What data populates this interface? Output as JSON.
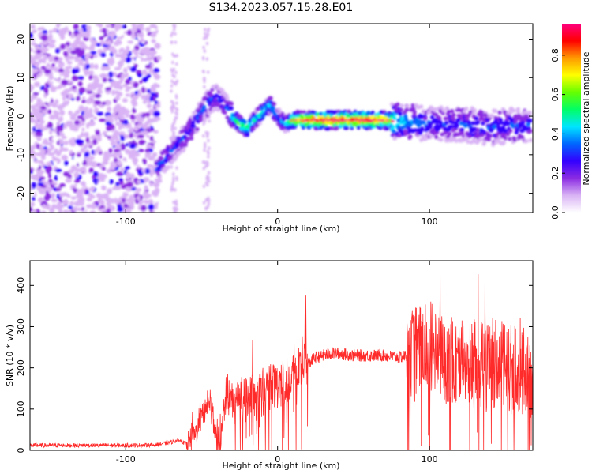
{
  "figure": {
    "title": "S134.2023.057.15.28.E01"
  },
  "chart_data": [
    {
      "type": "heatmap",
      "xlabel": "Height of straight line (km)",
      "ylabel": "Frequency (Hz)",
      "xlim": [
        -163,
        168
      ],
      "ylim": [
        -25,
        24
      ],
      "x_ticks": [
        -100,
        0,
        100
      ],
      "x_tick_labels": [
        "-100",
        "0",
        "100"
      ],
      "y_ticks": [
        -20,
        -10,
        0,
        10,
        20
      ],
      "y_tick_labels": [
        "-20",
        "-10",
        "0",
        "10",
        "20"
      ],
      "colorbar": {
        "label": "Normalized spectral amplitude",
        "range": [
          0,
          0.96
        ],
        "ticks": [
          0.0,
          0.2,
          0.4,
          0.6,
          0.8
        ],
        "tick_labels": [
          "0.0",
          "0.2",
          "0.4",
          "0.6",
          "0.8"
        ],
        "colormap": [
          "#ffffff",
          "#d9b3f5",
          "#8a2be2",
          "#3300ff",
          "#0066ff",
          "#00e5ff",
          "#00ff66",
          "#66ff00",
          "#ffff00",
          "#ff9900",
          "#ff0000",
          "#ff0080"
        ]
      },
      "ridge": {
        "x": [
          -80,
          -70,
          -60,
          -52,
          -45,
          -40,
          -35,
          -30,
          -25,
          -20,
          -15,
          -10,
          -5,
          0,
          5,
          10,
          20,
          30,
          40,
          50,
          60,
          70,
          80,
          90,
          100,
          110,
          120,
          130,
          140,
          150,
          160,
          167
        ],
        "y": [
          -14,
          -9,
          -5,
          0,
          4,
          5,
          3,
          0,
          -2,
          -3,
          -1,
          1,
          3,
          0,
          -2,
          -1,
          -1,
          -1,
          -1,
          -1,
          -1,
          -1,
          -1.5,
          -1.5,
          -2,
          -2,
          -2,
          -2.5,
          -3,
          -2.5,
          -2.5,
          -2
        ],
        "amplitude": [
          0.3,
          0.3,
          0.3,
          0.3,
          0.35,
          0.3,
          0.3,
          0.5,
          0.6,
          0.55,
          0.5,
          0.5,
          0.45,
          0.35,
          0.4,
          0.7,
          0.85,
          0.9,
          0.9,
          0.88,
          0.9,
          0.85,
          0.45,
          0.35,
          0.3,
          0.3,
          0.3,
          0.32,
          0.3,
          0.3,
          0.3,
          0.3
        ]
      }
    },
    {
      "type": "line",
      "xlabel": "Height of straight line (km)",
      "ylabel": "SNR (10 * v/v)",
      "xlim": [
        -163,
        168
      ],
      "ylim": [
        0,
        460
      ],
      "x_ticks": [
        -100,
        0,
        100
      ],
      "x_tick_labels": [
        "-100",
        "0",
        "100"
      ],
      "y_ticks": [
        0,
        100,
        200,
        300,
        400
      ],
      "y_tick_labels": [
        "0",
        "100",
        "200",
        "300",
        "400"
      ],
      "color": "#ff2a2a",
      "x": [
        -163,
        -140,
        -120,
        -100,
        -80,
        -70,
        -65,
        -60,
        -55,
        -50,
        -45,
        -40,
        -38,
        -35,
        -30,
        -25,
        -20,
        -15,
        -10,
        -5,
        0,
        5,
        10,
        15,
        20,
        25,
        30,
        35,
        40,
        50,
        60,
        70,
        80,
        85,
        90,
        100,
        110,
        120,
        130,
        140,
        150,
        160,
        167
      ],
      "y": [
        12,
        12,
        12,
        12,
        13,
        20,
        25,
        15,
        30,
        80,
        120,
        20,
        10,
        100,
        120,
        115,
        130,
        120,
        140,
        150,
        160,
        170,
        185,
        200,
        210,
        225,
        230,
        235,
        235,
        230,
        230,
        230,
        225,
        230,
        240,
        250,
        220,
        220,
        210,
        215,
        200,
        190,
        185
      ]
    }
  ]
}
